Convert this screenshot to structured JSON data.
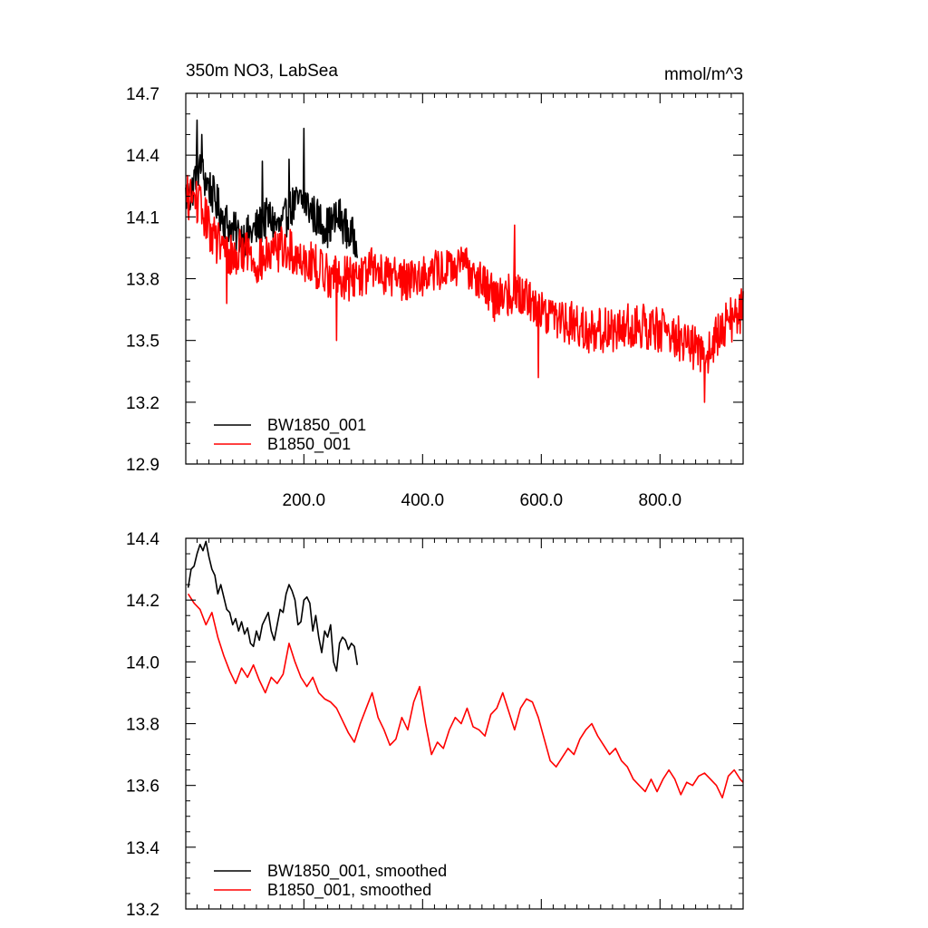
{
  "figure": {
    "background": "#ffffff"
  },
  "chart_data": [
    {
      "type": "line",
      "title": "350m NO3, LabSea",
      "units_label": "mmol/m^3",
      "xlim": [
        1,
        940
      ],
      "ylim": [
        12.9,
        14.7
      ],
      "xticks": [
        200,
        400,
        600,
        800
      ],
      "xtick_labels": [
        "200.0",
        "400.0",
        "600.0",
        "800.0"
      ],
      "yticks": [
        12.9,
        13.2,
        13.5,
        13.8,
        14.1,
        14.4,
        14.7
      ],
      "ytick_labels": [
        "12.9",
        "13.2",
        "13.5",
        "13.8",
        "14.1",
        "14.4",
        "14.7"
      ],
      "legend_position": "bottom-left",
      "series": [
        {
          "name": "BW1850_001",
          "color": "#000000",
          "anchors": [
            [
              1,
              14.2
            ],
            [
              10,
              14.2
            ],
            [
              20,
              14.35
            ],
            [
              30,
              14.3
            ],
            [
              40,
              14.25
            ],
            [
              60,
              14.12
            ],
            [
              80,
              14.03
            ],
            [
              100,
              14.0
            ],
            [
              120,
              14.04
            ],
            [
              140,
              14.1
            ],
            [
              160,
              14.04
            ],
            [
              180,
              14.15
            ],
            [
              200,
              14.18
            ],
            [
              220,
              14.1
            ],
            [
              240,
              14.05
            ],
            [
              260,
              14.1
            ],
            [
              280,
              14.0
            ],
            [
              290,
              14.0
            ]
          ],
          "noise": 0.1,
          "spikes": [
            [
              20,
              14.57
            ],
            [
              28,
              14.5
            ],
            [
              200,
              14.53
            ],
            [
              175,
              14.38
            ],
            [
              130,
              14.37
            ]
          ]
        },
        {
          "name": "B1850_001",
          "color": "#ff0000",
          "anchors": [
            [
              1,
              14.2
            ],
            [
              20,
              14.18
            ],
            [
              40,
              14.05
            ],
            [
              60,
              13.95
            ],
            [
              80,
              13.9
            ],
            [
              100,
              13.95
            ],
            [
              120,
              13.88
            ],
            [
              140,
              13.9
            ],
            [
              160,
              13.95
            ],
            [
              200,
              13.9
            ],
            [
              240,
              13.82
            ],
            [
              280,
              13.8
            ],
            [
              320,
              13.85
            ],
            [
              360,
              13.8
            ],
            [
              400,
              13.82
            ],
            [
              440,
              13.85
            ],
            [
              480,
              13.85
            ],
            [
              500,
              13.8
            ],
            [
              520,
              13.7
            ],
            [
              560,
              13.75
            ],
            [
              600,
              13.65
            ],
            [
              640,
              13.6
            ],
            [
              680,
              13.55
            ],
            [
              720,
              13.55
            ],
            [
              760,
              13.58
            ],
            [
              800,
              13.55
            ],
            [
              840,
              13.5
            ],
            [
              880,
              13.42
            ],
            [
              900,
              13.55
            ],
            [
              940,
              13.65
            ]
          ],
          "noise": 0.11,
          "spikes": [
            [
              555,
              14.06
            ],
            [
              595,
              13.32
            ],
            [
              875,
              13.2
            ],
            [
              70,
              13.68
            ],
            [
              255,
              13.5
            ]
          ]
        }
      ]
    },
    {
      "type": "line",
      "xlim": [
        1,
        940
      ],
      "ylim": [
        13.2,
        14.4
      ],
      "yticks": [
        13.2,
        13.4,
        13.6,
        13.8,
        14.0,
        14.2,
        14.4
      ],
      "ytick_labels": [
        "13.2",
        "13.4",
        "13.6",
        "13.8",
        "14.0",
        "14.2",
        "14.4"
      ],
      "legend_position": "bottom-left",
      "series": [
        {
          "name": "BW1850_001, smoothed",
          "color": "#000000",
          "x": [
            5,
            10,
            15,
            20,
            25,
            30,
            35,
            40,
            45,
            50,
            55,
            60,
            65,
            70,
            75,
            80,
            85,
            90,
            95,
            100,
            105,
            110,
            115,
            120,
            125,
            130,
            135,
            140,
            145,
            150,
            155,
            160,
            165,
            170,
            175,
            180,
            185,
            190,
            195,
            200,
            205,
            210,
            215,
            220,
            225,
            230,
            235,
            240,
            245,
            250,
            255,
            260,
            265,
            270,
            275,
            280,
            285,
            290
          ],
          "y": [
            14.24,
            14.3,
            14.31,
            14.35,
            14.38,
            14.36,
            14.39,
            14.34,
            14.3,
            14.28,
            14.22,
            14.25,
            14.21,
            14.17,
            14.16,
            14.12,
            14.14,
            14.1,
            14.13,
            14.09,
            14.11,
            14.06,
            14.05,
            14.1,
            14.07,
            14.12,
            14.14,
            14.16,
            14.1,
            14.07,
            14.12,
            14.17,
            14.16,
            14.22,
            14.25,
            14.23,
            14.2,
            14.12,
            14.13,
            14.2,
            14.21,
            14.19,
            14.1,
            14.15,
            14.08,
            14.03,
            14.1,
            14.08,
            14.12,
            14.0,
            13.97,
            14.06,
            14.08,
            14.07,
            14.04,
            14.06,
            14.05,
            13.99
          ]
        },
        {
          "name": "B1850_001, smoothed",
          "color": "#ff0000",
          "x": [
            5,
            15,
            25,
            35,
            45,
            55,
            65,
            75,
            85,
            95,
            105,
            115,
            125,
            135,
            145,
            155,
            165,
            175,
            185,
            195,
            205,
            215,
            225,
            235,
            245,
            255,
            265,
            275,
            285,
            295,
            305,
            315,
            325,
            335,
            345,
            355,
            365,
            375,
            385,
            395,
            405,
            415,
            425,
            435,
            445,
            455,
            465,
            475,
            485,
            495,
            505,
            515,
            525,
            535,
            545,
            555,
            565,
            575,
            585,
            595,
            605,
            615,
            625,
            635,
            645,
            655,
            665,
            675,
            685,
            695,
            705,
            715,
            725,
            735,
            745,
            755,
            765,
            775,
            785,
            795,
            805,
            815,
            825,
            835,
            845,
            855,
            865,
            875,
            885,
            895,
            905,
            915,
            925,
            935,
            940
          ],
          "y": [
            14.22,
            14.19,
            14.17,
            14.12,
            14.16,
            14.08,
            14.02,
            13.97,
            13.93,
            13.98,
            13.95,
            13.99,
            13.94,
            13.9,
            13.95,
            13.93,
            13.96,
            14.06,
            14.0,
            13.95,
            13.92,
            13.95,
            13.9,
            13.88,
            13.87,
            13.85,
            13.81,
            13.77,
            13.74,
            13.8,
            13.85,
            13.9,
            13.82,
            13.78,
            13.73,
            13.75,
            13.82,
            13.78,
            13.87,
            13.92,
            13.8,
            13.7,
            13.74,
            13.72,
            13.78,
            13.82,
            13.8,
            13.85,
            13.79,
            13.78,
            13.76,
            13.83,
            13.85,
            13.9,
            13.84,
            13.78,
            13.85,
            13.88,
            13.87,
            13.82,
            13.75,
            13.68,
            13.66,
            13.69,
            13.72,
            13.7,
            13.75,
            13.78,
            13.8,
            13.76,
            13.73,
            13.7,
            13.72,
            13.68,
            13.66,
            13.62,
            13.6,
            13.58,
            13.62,
            13.58,
            13.62,
            13.65,
            13.62,
            13.57,
            13.61,
            13.6,
            13.63,
            13.64,
            13.62,
            13.6,
            13.56,
            13.63,
            13.65,
            13.62,
            13.61
          ]
        }
      ]
    }
  ]
}
